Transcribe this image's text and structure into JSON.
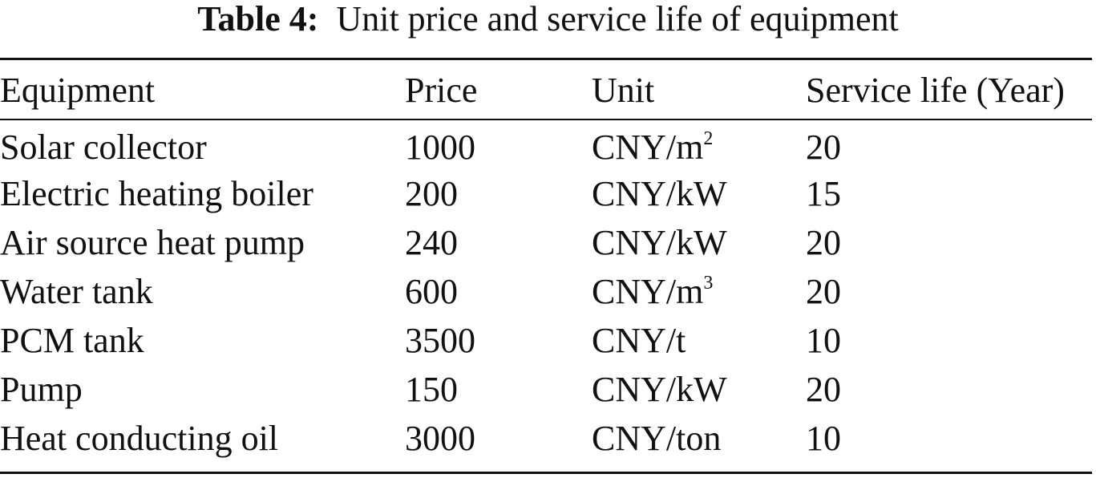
{
  "caption": {
    "label": "Table 4:",
    "title": "Unit price and service life of equipment"
  },
  "table": {
    "headers": [
      "Equipment",
      "Price",
      "Unit",
      "Service life (Year)"
    ],
    "rows": [
      {
        "equipment": "Solar collector",
        "price": "1000",
        "unit": "CNY/m",
        "unit_exp": "2",
        "life": "20"
      },
      {
        "equipment": "Electric heating boiler",
        "price": "200",
        "unit": "CNY/kW",
        "unit_exp": "",
        "life": "15"
      },
      {
        "equipment": "Air source heat pump",
        "price": "240",
        "unit": "CNY/kW",
        "unit_exp": "",
        "life": "20"
      },
      {
        "equipment": "Water tank",
        "price": "600",
        "unit": "CNY/m",
        "unit_exp": "3",
        "life": "20"
      },
      {
        "equipment": "PCM tank",
        "price": "3500",
        "unit": "CNY/t",
        "unit_exp": "",
        "life": "10"
      },
      {
        "equipment": "Pump",
        "price": "150",
        "unit": "CNY/kW",
        "unit_exp": "",
        "life": "20"
      },
      {
        "equipment": "Heat conducting oil",
        "price": "3000",
        "unit": "CNY/ton",
        "unit_exp": "",
        "life": "10"
      }
    ]
  }
}
